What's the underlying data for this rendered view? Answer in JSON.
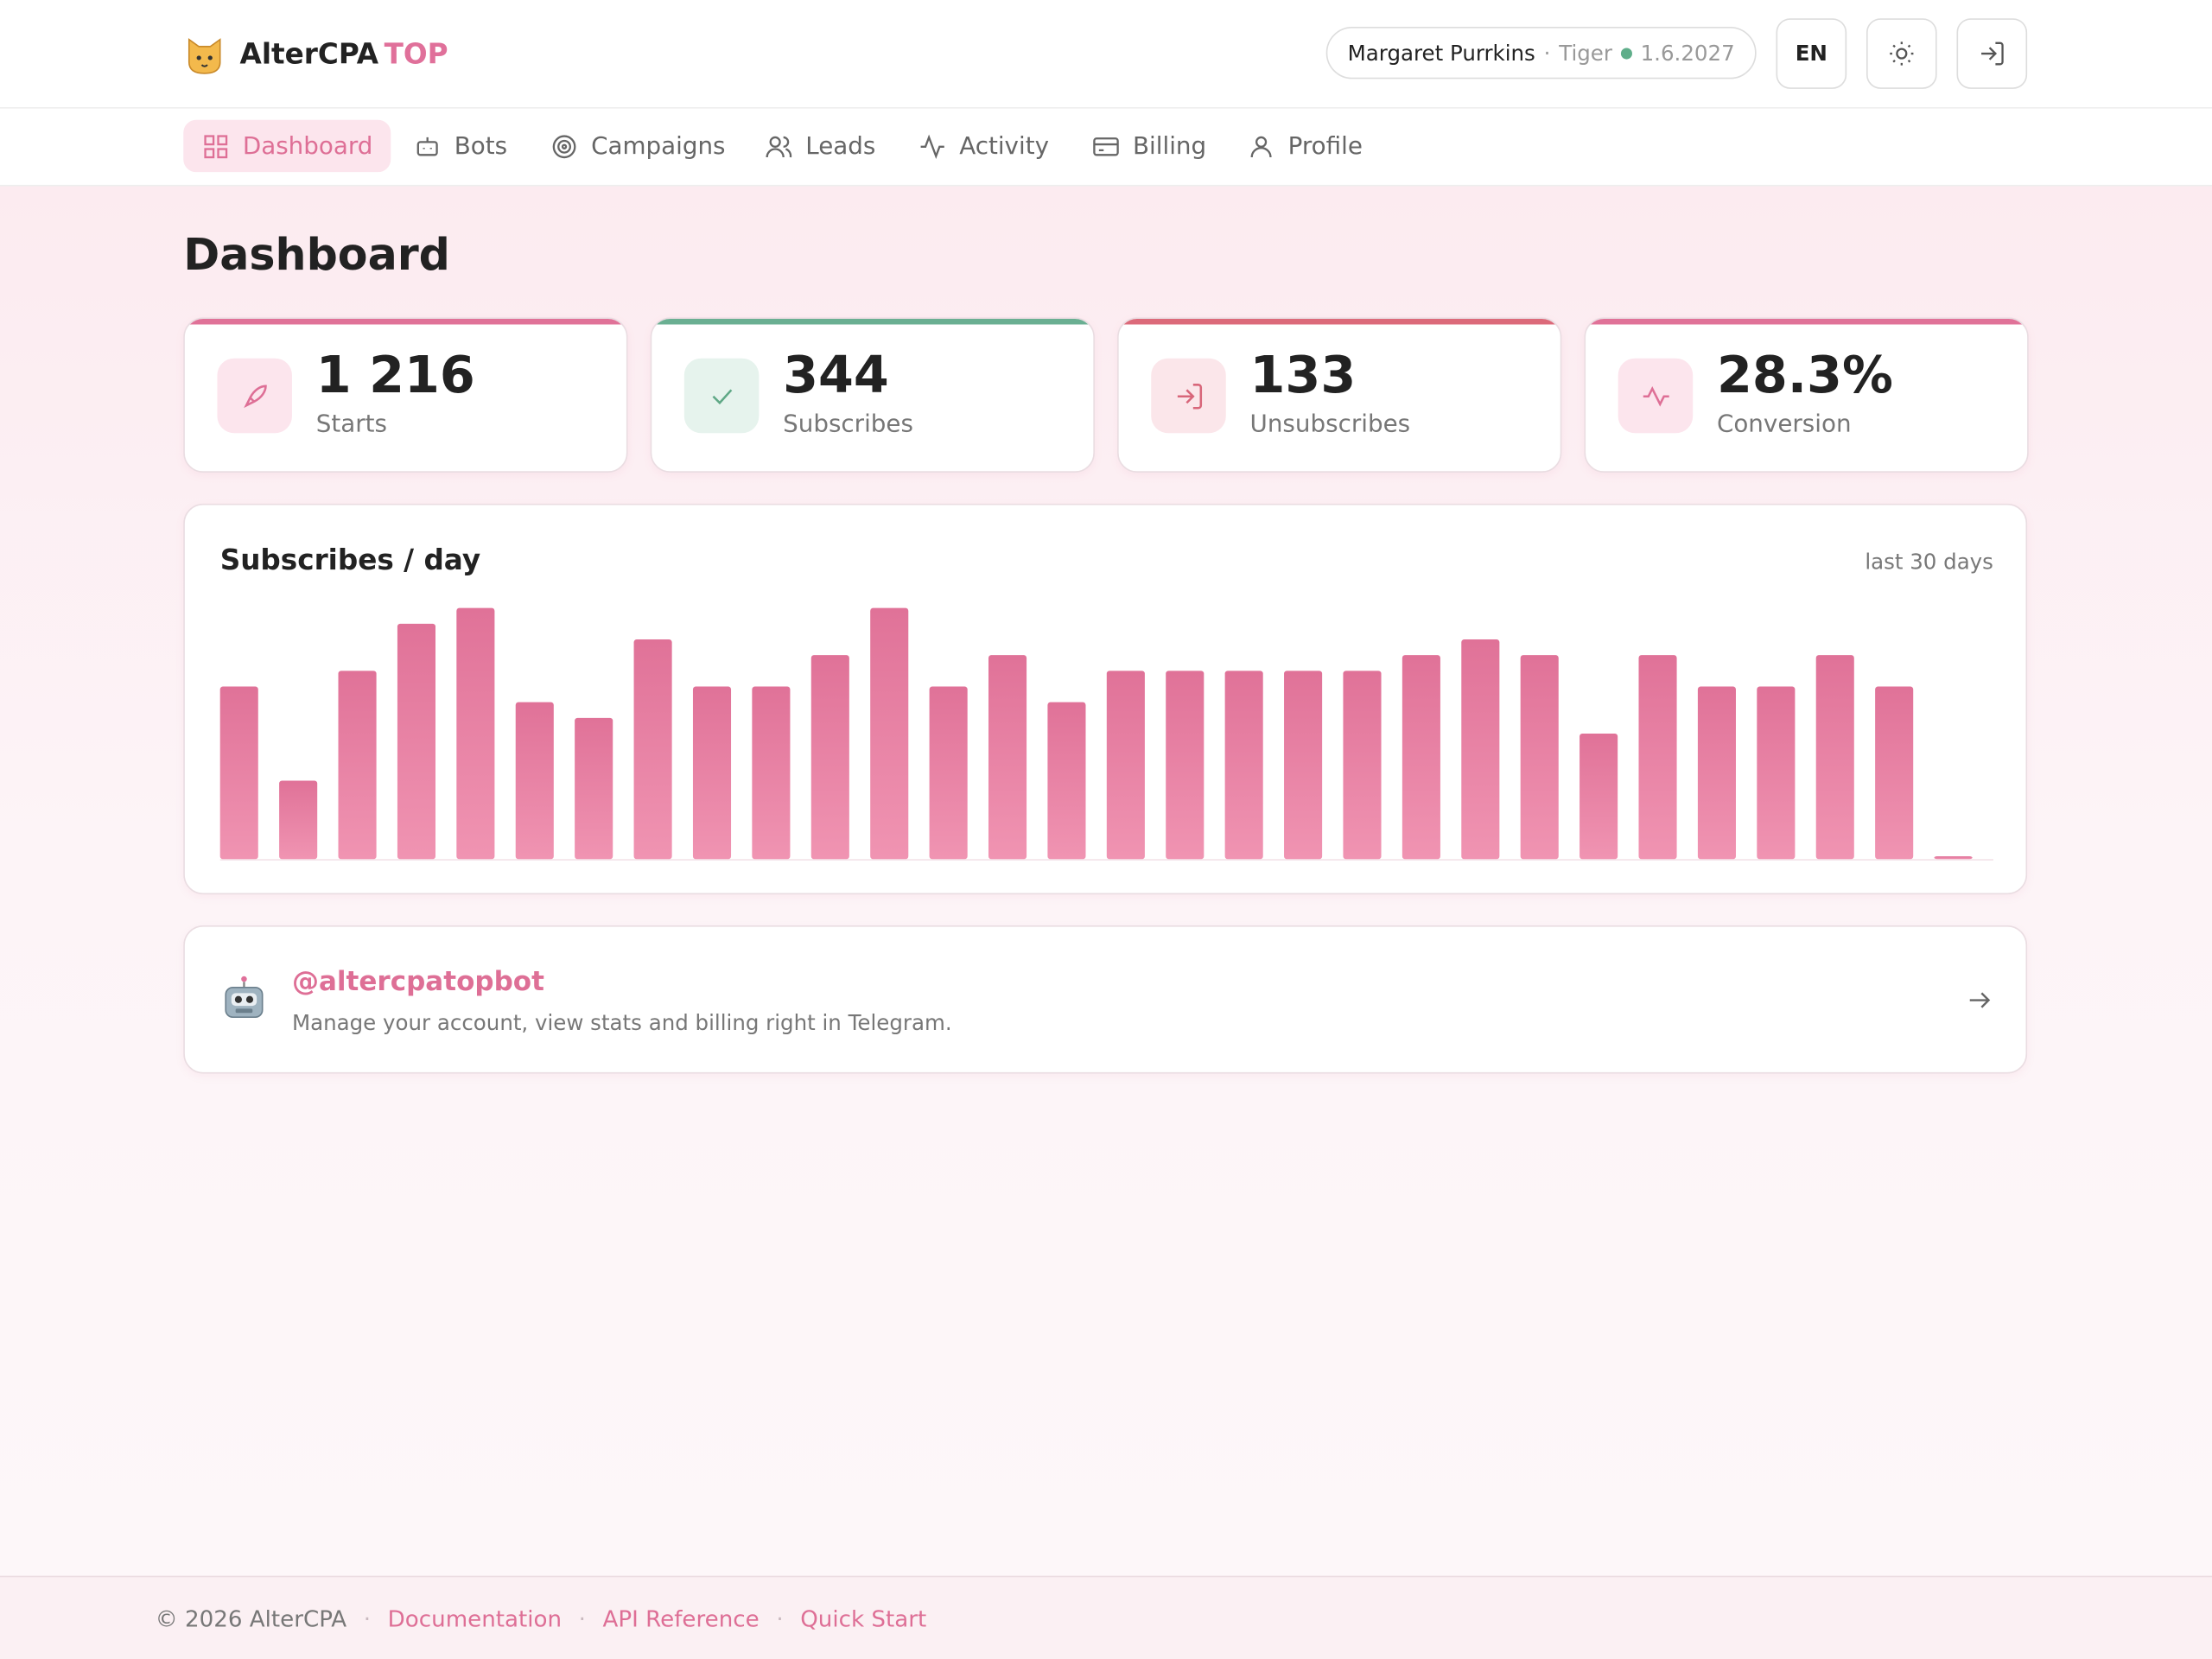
{
  "header": {
    "brand": "AlterCPA",
    "brand_accent": "TOP",
    "user": "Margaret Purrkins",
    "plan": "Tiger",
    "expires": "1.6.2027",
    "lang": "EN"
  },
  "nav": [
    "Dashboard",
    "Bots",
    "Campaigns",
    "Leads",
    "Activity",
    "Billing",
    "Profile"
  ],
  "page_title": "Dashboard",
  "kpis": [
    {
      "value": "1 216",
      "label": "Starts"
    },
    {
      "value": "344",
      "label": "Subscribes"
    },
    {
      "value": "133",
      "label": "Unsubscribes"
    },
    {
      "value": "28.3%",
      "label": "Conversion"
    }
  ],
  "chart_data": {
    "type": "bar",
    "title": "Subscribes / day",
    "subtitle": "last 30 days",
    "categories": [
      null,
      null,
      null,
      null,
      null,
      null,
      null,
      null,
      null,
      null,
      null,
      null,
      null,
      null,
      null,
      null,
      null,
      null,
      null,
      null,
      null,
      null,
      null,
      null,
      null,
      null,
      null,
      null,
      null,
      null
    ],
    "values": [
      11,
      5,
      12,
      15,
      16,
      10,
      9,
      14,
      11,
      11,
      13,
      16,
      11,
      13,
      10,
      12,
      12,
      12,
      12,
      12,
      13,
      14,
      13,
      8,
      13,
      11,
      11,
      13,
      11,
      0
    ],
    "color": "#e27499",
    "ylim": [
      0,
      16
    ]
  },
  "bot": {
    "handle": "@altercpatopbot",
    "description": "Manage your account, view stats and billing right in Telegram."
  },
  "footer": {
    "copyright": "© 2026 AlterCPA",
    "links": [
      "Documentation",
      "API Reference",
      "Quick Start"
    ]
  }
}
